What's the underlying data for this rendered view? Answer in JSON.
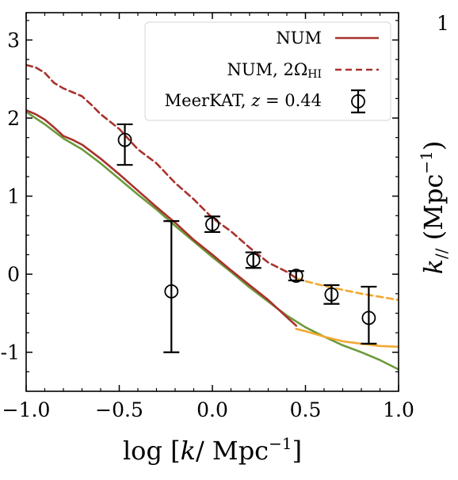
{
  "chart_data": {
    "type": "line",
    "xlabel": "log [k/ Mpc⁻¹]",
    "ylabel_right": "k// (Mpc⁻¹)",
    "corner_text": "1",
    "xlim": [
      -1.0,
      1.0
    ],
    "ylim": [
      -1.5,
      3.35
    ],
    "xticks": [
      -1.0,
      -0.5,
      0.0,
      0.5,
      1.0
    ],
    "xtick_labels": [
      "−1.0",
      "−0.5",
      "0.0",
      "0.5",
      "1.0"
    ],
    "yticks": [
      -1,
      0,
      1,
      2,
      3
    ],
    "ytick_labels": [
      "-1",
      "0",
      "1",
      "2",
      "3"
    ],
    "legend_position": "top-right",
    "legend": [
      {
        "label": "NUM",
        "style": "solid",
        "color": "#a8322d"
      },
      {
        "label": "NUM, 2ΩHI",
        "style": "dashed",
        "color": "#a8322d"
      },
      {
        "label": "MeerKAT, z = 0.44",
        "style": "errorbar",
        "color": "#000000"
      }
    ],
    "series": [
      {
        "style": "solid",
        "color": "#6b9a3a",
        "x": [
          -1.0,
          -0.9,
          -0.8,
          -0.7,
          -0.6,
          -0.5,
          -0.4,
          -0.3,
          -0.2,
          -0.1,
          0.0,
          0.1,
          0.2,
          0.3,
          0.4,
          0.5,
          0.6,
          0.7,
          0.8,
          0.9,
          1.0
        ],
        "y": [
          2.08,
          1.92,
          1.74,
          1.6,
          1.42,
          1.22,
          1.02,
          0.83,
          0.62,
          0.42,
          0.22,
          0.03,
          -0.17,
          -0.35,
          -0.53,
          -0.68,
          -0.8,
          -0.91,
          -1.0,
          -1.1,
          -1.22
        ]
      },
      {
        "style": "solid",
        "color": "#a8322d",
        "x": [
          -1.0,
          -0.95,
          -0.9,
          -0.85,
          -0.8,
          -0.75,
          -0.7,
          -0.65,
          -0.6,
          -0.5,
          -0.4,
          -0.3,
          -0.2,
          -0.1,
          0.0,
          0.1,
          0.2,
          0.3,
          0.4,
          0.45
        ],
        "y": [
          2.1,
          2.05,
          1.98,
          1.88,
          1.77,
          1.72,
          1.66,
          1.57,
          1.48,
          1.28,
          1.07,
          0.86,
          0.66,
          0.44,
          0.25,
          0.05,
          -0.14,
          -0.33,
          -0.55,
          -0.66
        ]
      },
      {
        "style": "dashed",
        "color": "#a8322d",
        "x": [
          -1.0,
          -0.95,
          -0.9,
          -0.85,
          -0.8,
          -0.75,
          -0.7,
          -0.65,
          -0.6,
          -0.5,
          -0.4,
          -0.3,
          -0.2,
          -0.1,
          0.0,
          0.1,
          0.2,
          0.3,
          0.4,
          0.45
        ],
        "y": [
          2.68,
          2.65,
          2.58,
          2.45,
          2.38,
          2.33,
          2.28,
          2.17,
          2.05,
          1.86,
          1.6,
          1.42,
          1.17,
          0.96,
          0.72,
          0.55,
          0.34,
          0.15,
          0.03,
          -0.05
        ]
      },
      {
        "style": "solid",
        "color": "#f3a833",
        "x": [
          0.45,
          0.5,
          0.6,
          0.7,
          0.8,
          0.9,
          1.0
        ],
        "y": [
          -0.7,
          -0.73,
          -0.8,
          -0.86,
          -0.89,
          -0.92,
          -0.93
        ]
      },
      {
        "style": "dashed",
        "color": "#f3a833",
        "x": [
          0.45,
          0.5,
          0.6,
          0.7,
          0.8,
          0.9,
          1.0
        ],
        "y": [
          -0.05,
          -0.09,
          -0.15,
          -0.2,
          -0.25,
          -0.29,
          -0.33
        ]
      }
    ],
    "points": {
      "name": "MeerKAT, z = 0.44",
      "x": [
        -0.47,
        -0.22,
        0.0,
        0.22,
        0.45,
        0.64,
        0.84
      ],
      "y": [
        1.72,
        -0.22,
        0.64,
        0.18,
        -0.02,
        -0.26,
        -0.56
      ],
      "yerr_low": [
        0.32,
        0.78,
        0.1,
        0.1,
        0.06,
        0.12,
        0.33
      ],
      "yerr_high": [
        0.2,
        0.9,
        0.1,
        0.1,
        0.06,
        0.12,
        0.4
      ]
    }
  }
}
